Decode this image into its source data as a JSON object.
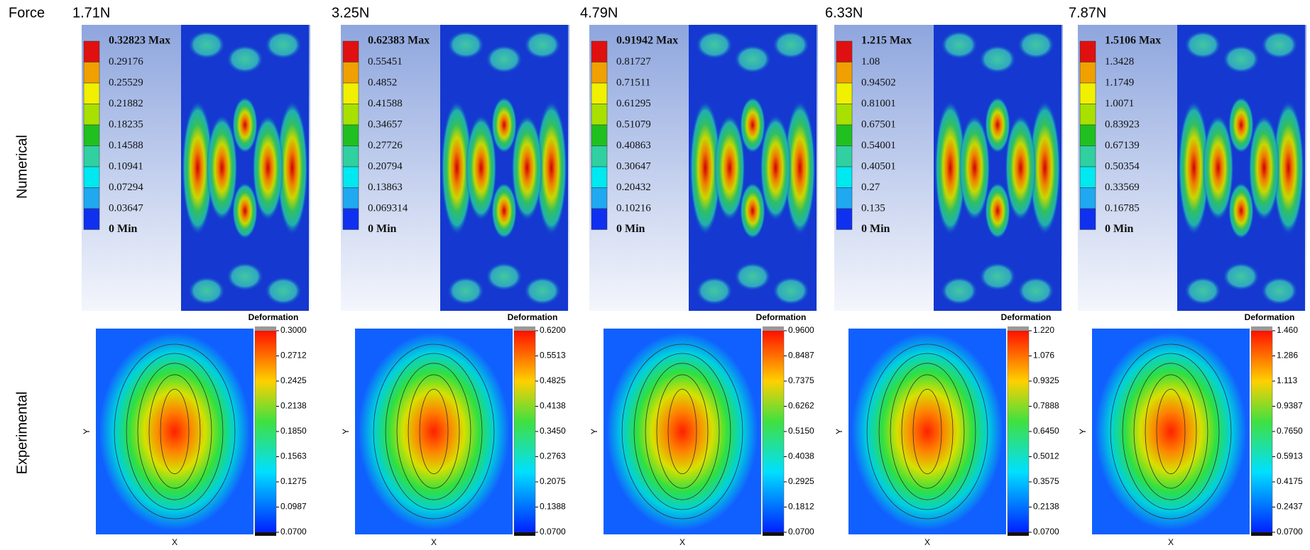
{
  "row_labels": {
    "force": "Force",
    "numerical": "Numerical",
    "experimental": "Experimental"
  },
  "columns": [
    {
      "force": "1.71N",
      "numerical_legend": [
        "0.32823 Max",
        "0.29176",
        "0.25529",
        "0.21882",
        "0.18235",
        "0.14588",
        "0.10941",
        "0.07294",
        "0.03647",
        "0 Min"
      ],
      "experimental": {
        "title": "Deformation",
        "ticks": [
          "0.3000",
          "0.2712",
          "0.2425",
          "0.2138",
          "0.1850",
          "0.1563",
          "0.1275",
          "0.0987",
          "0.0700"
        ],
        "x_label": "X",
        "y_label": "Y"
      }
    },
    {
      "force": "3.25N",
      "numerical_legend": [
        "0.62383 Max",
        "0.55451",
        "0.4852",
        "0.41588",
        "0.34657",
        "0.27726",
        "0.20794",
        "0.13863",
        "0.069314",
        "0 Min"
      ],
      "experimental": {
        "title": "Deformation",
        "ticks": [
          "0.6200",
          "0.5513",
          "0.4825",
          "0.4138",
          "0.3450",
          "0.2763",
          "0.2075",
          "0.1388",
          "0.0700"
        ],
        "x_label": "X",
        "y_label": "Y"
      }
    },
    {
      "force": "4.79N",
      "numerical_legend": [
        "0.91942 Max",
        "0.81727",
        "0.71511",
        "0.61295",
        "0.51079",
        "0.40863",
        "0.30647",
        "0.20432",
        "0.10216",
        "0 Min"
      ],
      "experimental": {
        "title": "Deformation",
        "ticks": [
          "0.9600",
          "0.8487",
          "0.7375",
          "0.6262",
          "0.5150",
          "0.4038",
          "0.2925",
          "0.1812",
          "0.0700"
        ],
        "x_label": "X",
        "y_label": "Y"
      }
    },
    {
      "force": "6.33N",
      "numerical_legend": [
        "1.215 Max",
        "1.08",
        "0.94502",
        "0.81001",
        "0.67501",
        "0.54001",
        "0.40501",
        "0.27",
        "0.135",
        "0 Min"
      ],
      "experimental": {
        "title": "Deformation",
        "ticks": [
          "1.220",
          "1.076",
          "0.9325",
          "0.7888",
          "0.6450",
          "0.5012",
          "0.3575",
          "0.2138",
          "0.0700"
        ],
        "x_label": "X",
        "y_label": "Y"
      }
    },
    {
      "force": "7.87N",
      "numerical_legend": [
        "1.5106 Max",
        "1.3428",
        "1.1749",
        "1.0071",
        "0.83923",
        "0.67139",
        "0.50354",
        "0.33569",
        "0.16785",
        "0 Min"
      ],
      "experimental": {
        "title": "Deformation",
        "ticks": [
          "1.460",
          "1.286",
          "1.113",
          "0.9387",
          "0.7650",
          "0.5913",
          "0.4175",
          "0.2437",
          "0.0700"
        ],
        "x_label": "X",
        "y_label": "Y"
      }
    }
  ]
}
